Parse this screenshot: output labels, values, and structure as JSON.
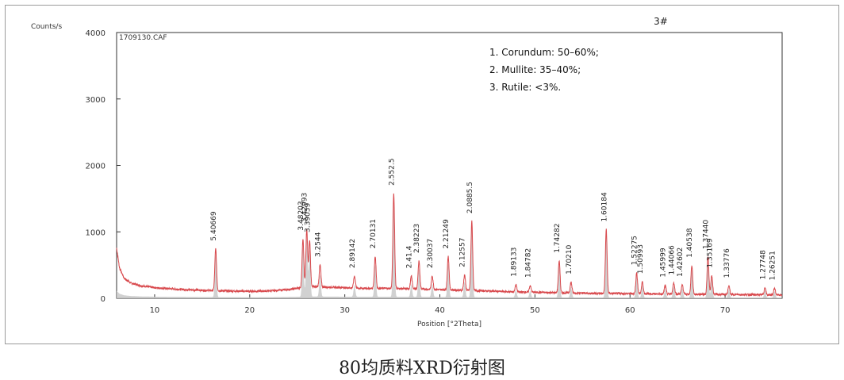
{
  "chart_data": {
    "type": "line",
    "sample_id": "3#",
    "file_label": "1709130.CAF",
    "ylabel": "Counts/s",
    "xlabel": "Position [°2Theta]",
    "xlim": [
      6,
      76
    ],
    "ylim": [
      0,
      4000
    ],
    "x_ticks": [
      "10",
      "20",
      "30",
      "40",
      "50",
      "60",
      "70"
    ],
    "y_ticks": [
      "0",
      "1000",
      "2000",
      "3000",
      "4000"
    ],
    "legend": [
      "1. Corundum: 50–60%;",
      "2. Mullite: 35–40%;",
      "3. Rutile: <3%."
    ],
    "baseline": [
      [
        6.0,
        760
      ],
      [
        6.3,
        460
      ],
      [
        6.8,
        300
      ],
      [
        7.5,
        230
      ],
      [
        8.5,
        190
      ],
      [
        10,
        160
      ],
      [
        12,
        140
      ],
      [
        15,
        120
      ],
      [
        18,
        110
      ],
      [
        20,
        105
      ],
      [
        22,
        110
      ],
      [
        24,
        130
      ],
      [
        25,
        150
      ],
      [
        26.5,
        175
      ],
      [
        28,
        170
      ],
      [
        30,
        160
      ],
      [
        32,
        150
      ],
      [
        34,
        150
      ],
      [
        36,
        145
      ],
      [
        38,
        140
      ],
      [
        40,
        130
      ],
      [
        44,
        115
      ],
      [
        48,
        95
      ],
      [
        52,
        85
      ],
      [
        56,
        75
      ],
      [
        60,
        70
      ],
      [
        64,
        65
      ],
      [
        68,
        60
      ],
      [
        72,
        55
      ],
      [
        76,
        50
      ]
    ],
    "peaks": [
      {
        "x": 16.42,
        "y": 630,
        "label": "5.40669"
      },
      {
        "x": 25.6,
        "y": 740,
        "label": "3.48203"
      },
      {
        "x": 26.0,
        "y": 860,
        "label": "3.42993"
      },
      {
        "x": 26.3,
        "y": 700,
        "label": "3.39059"
      },
      {
        "x": 27.4,
        "y": 330,
        "label": "3.2544"
      },
      {
        "x": 31.02,
        "y": 180,
        "label": "2.89142"
      },
      {
        "x": 33.2,
        "y": 480,
        "label": "2.70131"
      },
      {
        "x": 35.15,
        "y": 1430,
        "label": "2.552.5"
      },
      {
        "x": 37.0,
        "y": 190,
        "label": "2.41.4"
      },
      {
        "x": 37.8,
        "y": 420,
        "label": "2.38223"
      },
      {
        "x": 39.2,
        "y": 200,
        "label": "2.30037"
      },
      {
        "x": 40.88,
        "y": 500,
        "label": "2.21249"
      },
      {
        "x": 42.6,
        "y": 230,
        "label": "2.12557"
      },
      {
        "x": 43.36,
        "y": 1040,
        "label": "2.0885.5"
      },
      {
        "x": 48.0,
        "y": 110,
        "label": "1.89133"
      },
      {
        "x": 49.5,
        "y": 100,
        "label": "1.84782"
      },
      {
        "x": 52.55,
        "y": 480,
        "label": "1.74282"
      },
      {
        "x": 53.8,
        "y": 160,
        "label": "1.70210"
      },
      {
        "x": 57.5,
        "y": 960,
        "label": "1.60184"
      },
      {
        "x": 60.7,
        "y": 310,
        "label": "1.52275"
      },
      {
        "x": 61.3,
        "y": 180,
        "label": "1.50993"
      },
      {
        "x": 63.7,
        "y": 130,
        "label": "1.45999"
      },
      {
        "x": 64.6,
        "y": 170,
        "label": "1.44066"
      },
      {
        "x": 65.5,
        "y": 140,
        "label": "1.42602"
      },
      {
        "x": 66.5,
        "y": 430,
        "label": "1.40538"
      },
      {
        "x": 68.2,
        "y": 560,
        "label": "1.37440"
      },
      {
        "x": 68.6,
        "y": 280,
        "label": "1.35169"
      },
      {
        "x": 70.4,
        "y": 130,
        "label": "1.33776"
      },
      {
        "x": 74.2,
        "y": 110,
        "label": "1.27748"
      },
      {
        "x": 75.2,
        "y": 100,
        "label": "1.26251"
      }
    ]
  },
  "caption": "80均质料XRD衍射图"
}
